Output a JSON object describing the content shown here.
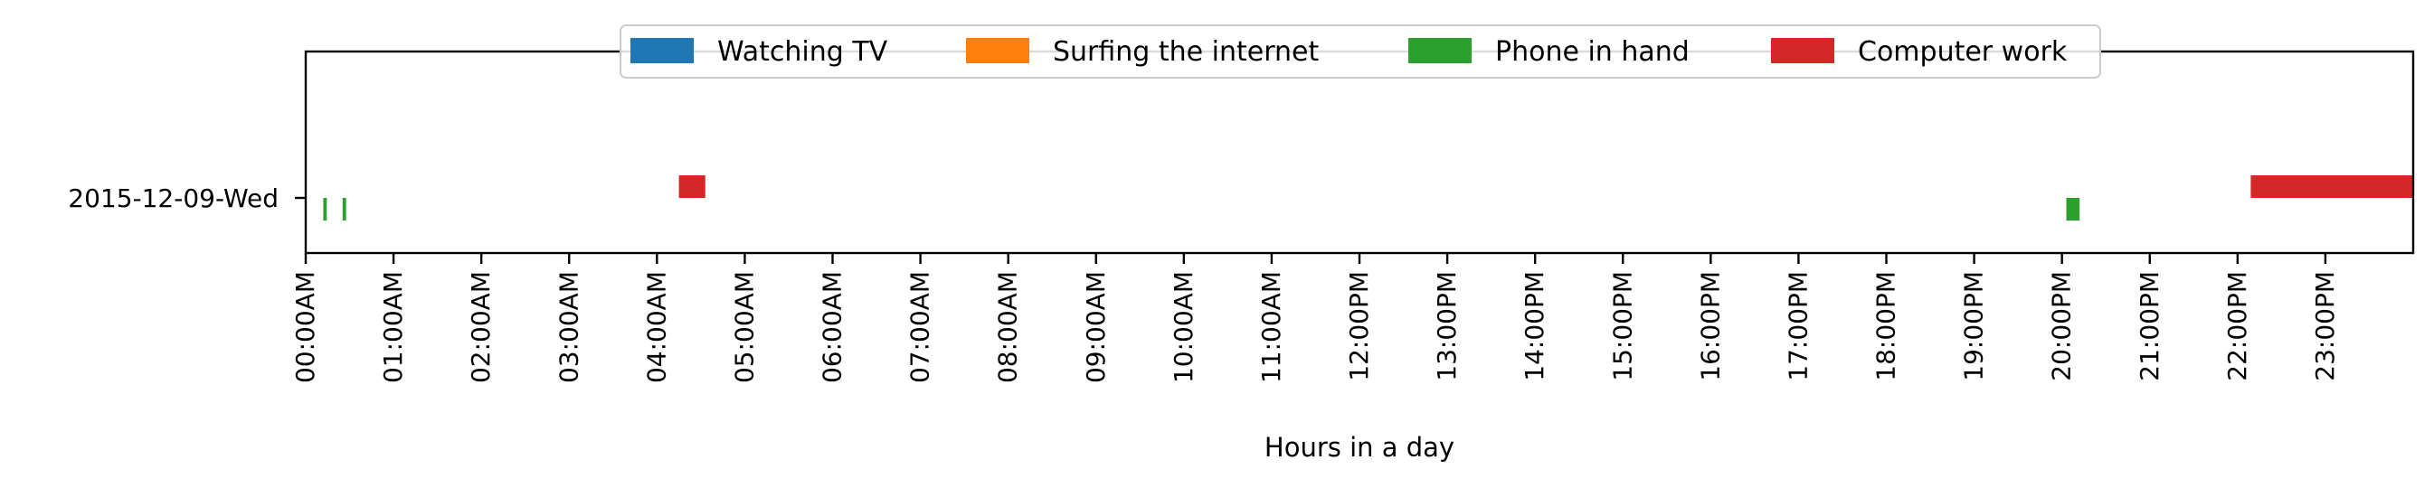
{
  "chart_data": {
    "type": "bar",
    "orientation": "horizontal-timeline",
    "title": "",
    "xlabel": "Hours in a day",
    "ylabel": "",
    "categories": [
      "2015-12-09-Wed"
    ],
    "xlim": [
      0,
      24
    ],
    "x_tick_labels": [
      "00:00AM",
      "01:00AM",
      "02:00AM",
      "03:00AM",
      "04:00AM",
      "05:00AM",
      "06:00AM",
      "07:00AM",
      "08:00AM",
      "09:00AM",
      "10:00AM",
      "11:00AM",
      "12:00PM",
      "13:00PM",
      "14:00PM",
      "15:00PM",
      "16:00PM",
      "17:00PM",
      "18:00PM",
      "19:00PM",
      "20:00PM",
      "21:00PM",
      "22:00PM",
      "23:00PM"
    ],
    "legend_position": "top-center",
    "grid": false,
    "series": [
      {
        "name": "Watching TV",
        "color": "#1f77b4",
        "lane": "lower",
        "intervals": []
      },
      {
        "name": "Surfing the internet",
        "color": "#ff7f0e",
        "lane": "upper",
        "intervals": []
      },
      {
        "name": "Phone in hand",
        "color": "#2ca02c",
        "lane": "lower",
        "intervals": [
          [
            0.2,
            0.24
          ],
          [
            0.42,
            0.46
          ],
          [
            20.05,
            20.2
          ]
        ]
      },
      {
        "name": "Computer work",
        "color": "#d62728",
        "lane": "upper",
        "intervals": [
          [
            4.25,
            4.55
          ],
          [
            22.15,
            24.0
          ]
        ]
      }
    ]
  }
}
